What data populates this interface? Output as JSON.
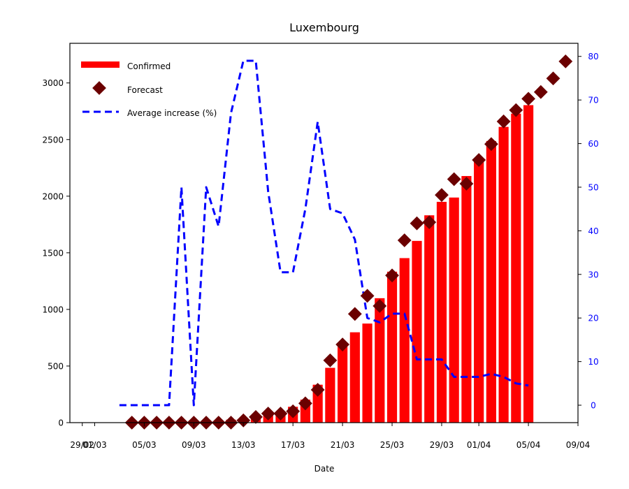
{
  "chart_data": {
    "type": "bar",
    "title": "Luxembourg",
    "xlabel": "Date",
    "ylabel": "",
    "y2label": "",
    "ylim": [
      0,
      3350
    ],
    "y2lim": [
      -4,
      83
    ],
    "xlim": [
      "2020-02-28",
      "2020-04-09"
    ],
    "x_ticks": [
      "2020-02-29",
      "2020-03-01",
      "2020-03-05",
      "2020-03-09",
      "2020-03-13",
      "2020-03-17",
      "2020-03-21",
      "2020-03-25",
      "2020-03-29",
      "2020-04-01",
      "2020-04-05",
      "2020-04-09"
    ],
    "x_tick_labels": [
      "29/02",
      "01/03",
      "05/03",
      "09/03",
      "13/03",
      "17/03",
      "21/03",
      "25/03",
      "29/03",
      "01/04",
      "05/04",
      "09/04"
    ],
    "y_ticks": [
      0,
      500,
      1000,
      1500,
      2000,
      2500,
      3000
    ],
    "y_tick_labels": [
      "0",
      "500",
      "1000",
      "1500",
      "2000",
      "2500",
      "3000"
    ],
    "y2_ticks": [
      0,
      10,
      20,
      30,
      40,
      50,
      60,
      70,
      80
    ],
    "y2_tick_labels": [
      "0",
      "10",
      "20",
      "30",
      "40",
      "50",
      "60",
      "70",
      "80"
    ],
    "legend": {
      "position": "top-left",
      "entries": [
        "Confirmed",
        "Forecast",
        "Average increase (%)"
      ]
    },
    "grid": false,
    "colors": {
      "confirmed": "#ff0000",
      "forecast": "#6b0000",
      "average": "#0000ff",
      "right_axis_ticks": "#0000ff"
    },
    "series": [
      {
        "name": "Confirmed",
        "type": "bar",
        "axis": "left",
        "x": [
          "2020-03-04",
          "2020-03-05",
          "2020-03-06",
          "2020-03-07",
          "2020-03-08",
          "2020-03-09",
          "2020-03-10",
          "2020-03-11",
          "2020-03-12",
          "2020-03-13",
          "2020-03-14",
          "2020-03-15",
          "2020-03-16",
          "2020-03-17",
          "2020-03-18",
          "2020-03-19",
          "2020-03-20",
          "2020-03-21",
          "2020-03-22",
          "2020-03-23",
          "2020-03-24",
          "2020-03-25",
          "2020-03-26",
          "2020-03-27",
          "2020-03-28",
          "2020-03-29",
          "2020-03-30",
          "2020-03-31",
          "2020-04-01",
          "2020-04-02",
          "2020-04-03",
          "2020-04-04",
          "2020-04-05"
        ],
        "values": [
          1,
          1,
          2,
          3,
          3,
          3,
          5,
          7,
          26,
          34,
          51,
          77,
          81,
          140,
          203,
          335,
          484,
          670,
          798,
          875,
          1099,
          1333,
          1453,
          1605,
          1831,
          1950,
          1988,
          2178,
          2319,
          2487,
          2612,
          2729,
          2804
        ]
      },
      {
        "name": "Forecast",
        "type": "scatter",
        "axis": "left",
        "x": [
          "2020-03-04",
          "2020-03-05",
          "2020-03-06",
          "2020-03-07",
          "2020-03-08",
          "2020-03-09",
          "2020-03-10",
          "2020-03-11",
          "2020-03-12",
          "2020-03-13",
          "2020-03-14",
          "2020-03-15",
          "2020-03-16",
          "2020-03-17",
          "2020-03-18",
          "2020-03-19",
          "2020-03-20",
          "2020-03-21",
          "2020-03-22",
          "2020-03-23",
          "2020-03-24",
          "2020-03-25",
          "2020-03-26",
          "2020-03-27",
          "2020-03-28",
          "2020-03-29",
          "2020-03-30",
          "2020-03-31",
          "2020-04-01",
          "2020-04-02",
          "2020-04-03",
          "2020-04-04",
          "2020-04-05",
          "2020-04-06",
          "2020-04-07",
          "2020-04-08"
        ],
        "values": [
          0,
          0,
          0,
          0,
          0,
          0,
          0,
          0,
          0,
          20,
          50,
          80,
          80,
          100,
          170,
          290,
          550,
          690,
          960,
          1120,
          1030,
          1300,
          1610,
          1760,
          1770,
          2010,
          2150,
          2110,
          2320,
          2460,
          2660,
          2760,
          2860,
          2920,
          3040,
          3190
        ]
      },
      {
        "name": "Average increase (%)",
        "type": "line",
        "axis": "right",
        "style": "dashed",
        "x": [
          "2020-03-03",
          "2020-03-04",
          "2020-03-05",
          "2020-03-06",
          "2020-03-07",
          "2020-03-08",
          "2020-03-09",
          "2020-03-10",
          "2020-03-11",
          "2020-03-12",
          "2020-03-13",
          "2020-03-14",
          "2020-03-15",
          "2020-03-16",
          "2020-03-17",
          "2020-03-18",
          "2020-03-19",
          "2020-03-20",
          "2020-03-21",
          "2020-03-22",
          "2020-03-23",
          "2020-03-24",
          "2020-03-25",
          "2020-03-26",
          "2020-03-27",
          "2020-03-28",
          "2020-03-29",
          "2020-03-30",
          "2020-03-31",
          "2020-04-01",
          "2020-04-02",
          "2020-04-03",
          "2020-04-04",
          "2020-04-05"
        ],
        "values": [
          0,
          0,
          0,
          0,
          0,
          50,
          0,
          50,
          41,
          67,
          79,
          79,
          49,
          30.5,
          30.5,
          45,
          65,
          45,
          44,
          38,
          20,
          19,
          21,
          21,
          10.5,
          10.5,
          10.5,
          6.5,
          6.5,
          6.5,
          7.2,
          6.5,
          5,
          4.5
        ]
      }
    ]
  }
}
